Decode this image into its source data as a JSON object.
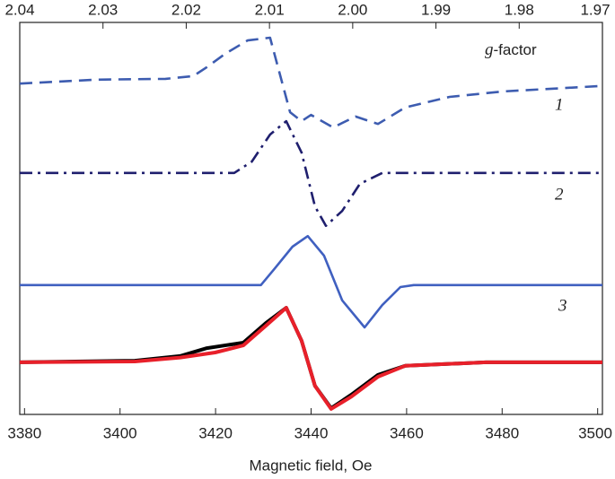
{
  "chart_data": {
    "type": "line",
    "xlabel": "Magnetic field, Oe",
    "x2label_symbol": "g",
    "x2label_rest": "-factor",
    "xlim": [
      3379,
      3501
    ],
    "xticks": [
      3380,
      3400,
      3420,
      3440,
      3460,
      3480,
      3500
    ],
    "x2lim": [
      2.04,
      1.97
    ],
    "x2ticks": [
      2.04,
      2.03,
      2.02,
      2.01,
      {
        "value": 2,
        "label": "2.00"
      },
      1.99,
      1.98,
      1.97
    ],
    "ylim": [
      0,
      100
    ],
    "series": [
      {
        "name": "1",
        "color": "#3d5cb0",
        "style": "dashed",
        "x": [
          3379,
          3395,
          3409.5,
          3415.3,
          3418.2,
          3422,
          3426.7,
          3431.4,
          3435.6,
          3438,
          3440,
          3444.6,
          3449.3,
          3454,
          3459.7,
          3469,
          3480.3,
          3501
        ],
        "values": [
          84.4,
          85.4,
          85.6,
          86.3,
          88.6,
          92,
          95.4,
          96.1,
          77.1,
          74.8,
          76.4,
          73.2,
          76,
          74.1,
          78.3,
          81,
          82.4,
          83.8
        ]
      },
      {
        "name": "2",
        "color": "#1f1f6e",
        "style": "dashdot",
        "x": [
          3379,
          3423.9,
          3427.6,
          3431.4,
          3434.8,
          3438,
          3440.8,
          3443.1,
          3446.5,
          3450.2,
          3454.9,
          3501
        ],
        "values": [
          61.6,
          61.6,
          64.5,
          71.4,
          74.8,
          66.8,
          53.1,
          48.1,
          51.9,
          58.8,
          61.6,
          61.6
        ]
      },
      {
        "name": "3",
        "color": "#4060c0",
        "style": "solid",
        "x": [
          3379,
          3429.5,
          3432.3,
          3436.1,
          3439.3,
          3442.7,
          3446.5,
          3451.2,
          3454.9,
          3458.7,
          3461.5,
          3501
        ],
        "values": [
          33,
          33,
          37.1,
          42.8,
          45.5,
          40.5,
          29.1,
          22.2,
          27.9,
          32.5,
          33,
          33
        ]
      },
      {
        "color": "#000000",
        "style": "solid",
        "x": [
          3379,
          3403.1,
          3412.6,
          3418.2,
          3425.8,
          3430.5,
          3434.8,
          3438,
          3440.8,
          3444.2,
          3448.4,
          3454,
          3459.7,
          3476.6,
          3501
        ],
        "values": [
          13.3,
          13.7,
          14.9,
          16.9,
          18.3,
          23.3,
          27.2,
          18.8,
          7.3,
          1.6,
          5,
          10.1,
          12.4,
          13.3,
          13.3
        ]
      },
      {
        "color": "#e8202a",
        "style": "solid",
        "x": [
          3379,
          3403.1,
          3412.6,
          3419.9,
          3425.8,
          3430.5,
          3434.8,
          3438,
          3440.8,
          3444.2,
          3448.4,
          3454,
          3459.7,
          3476.6,
          3501
        ],
        "values": [
          13.3,
          13.5,
          14.5,
          15.8,
          17.6,
          22.6,
          27.2,
          18.8,
          7.3,
          1.4,
          4.5,
          9.6,
          12.4,
          13.3,
          13.3
        ]
      }
    ]
  }
}
